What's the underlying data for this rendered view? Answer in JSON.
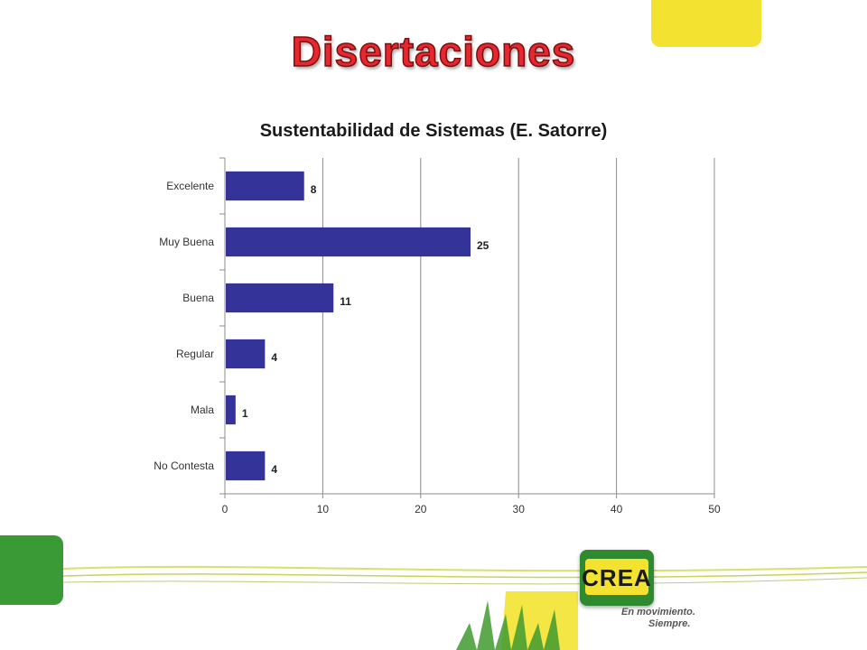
{
  "slide": {
    "title": "Disertaciones"
  },
  "brand": {
    "logo_text": "CREA",
    "tagline_line1": "En movimiento.",
    "tagline_line2": "Siempre."
  },
  "colors": {
    "bar": "#333399",
    "title_red": "#e8262d",
    "accent_yellow": "#f3e330",
    "accent_green": "#3a9a35"
  },
  "chart_data": {
    "type": "bar",
    "orientation": "horizontal",
    "title": "Sustentabilidad de Sistemas (E. Satorre)",
    "categories": [
      "Excelente",
      "Muy Buena",
      "Buena",
      "Regular",
      "Mala",
      "No Contesta"
    ],
    "values": [
      8,
      25,
      11,
      4,
      1,
      4
    ],
    "xlim": [
      0,
      50
    ],
    "xticks": [
      0,
      10,
      20,
      30,
      40,
      50
    ],
    "xlabel": "",
    "ylabel": "",
    "grid": true,
    "legend": "none",
    "data_labels": true
  }
}
